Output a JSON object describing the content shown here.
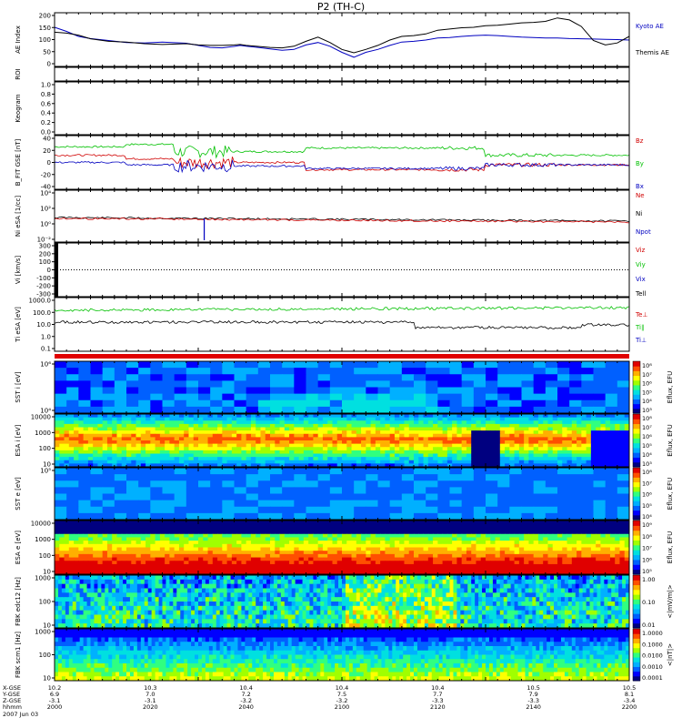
{
  "chart_data": {
    "type": "line",
    "title": "P2 (TH-C)",
    "time_labels": [
      "2000",
      "2020",
      "2040",
      "2100",
      "2120",
      "2140",
      "2200"
    ],
    "x_ticks": [
      {
        "time": "2000",
        "x_gse": "10.2",
        "y_gse": "6.9",
        "z_gse": "-3.1"
      },
      {
        "time": "2020",
        "x_gse": "10.3",
        "y_gse": "7.0",
        "z_gse": "-3.1"
      },
      {
        "time": "2040",
        "x_gse": "10.4",
        "y_gse": "7.2",
        "z_gse": "-3.2"
      },
      {
        "time": "2100",
        "x_gse": "10.4",
        "y_gse": "7.5",
        "z_gse": "-3.2"
      },
      {
        "time": "2120",
        "x_gse": "10.4",
        "y_gse": "7.7",
        "z_gse": "-3.3"
      },
      {
        "time": "2140",
        "x_gse": "10.5",
        "y_gse": "7.9",
        "z_gse": "-3.3"
      },
      {
        "time": "2200",
        "x_gse": "10.5",
        "y_gse": "8.1",
        "z_gse": "-3.4"
      }
    ],
    "footer": {
      "x_label": "X-GSE",
      "y_label": "Y-GSE",
      "z_label": "Z-GSE",
      "time_label": "hhmm",
      "date": "2007 Jun 03"
    },
    "panels": {
      "ae": {
        "ylabel": "AE Index",
        "ylim": [
          0,
          200
        ],
        "ticks": [
          "200",
          "150",
          "100",
          "50",
          "0"
        ],
        "series": [
          {
            "name": "Kyoto AE",
            "color": "#0000c0",
            "t": [
              0,
              10,
              20,
              30,
              45,
              60,
              75,
              90,
              110,
              120,
              130,
              140,
              150,
              155,
              160,
              170,
              180,
              190,
              200,
              210,
              220,
              230,
              240,
              250,
              260,
              270,
              280,
              290,
              300,
              310,
              320,
              330,
              340,
              350,
              360,
              370,
              380,
              390,
              400,
              410,
              420,
              430,
              440,
              450,
              460,
              470,
              480
            ],
            "y": [
              152,
              135,
              115,
              106,
              98,
              90,
              88,
              92,
              87,
              78,
              70,
              68,
              74,
              78,
              75,
              70,
              64,
              58,
              62,
              80,
              90,
              75,
              50,
              30,
              50,
              62,
              78,
              92,
              95,
              100,
              108,
              110,
              115,
              118,
              120,
              118,
              115,
              112,
              110,
              108,
              108,
              106,
              105,
              104,
              103,
              102,
              100
            ]
          },
          {
            "name": "Themis AE",
            "color": "#000000",
            "t": [
              0,
              10,
              20,
              30,
              45,
              60,
              75,
              90,
              110,
              120,
              130,
              140,
              150,
              155,
              160,
              170,
              180,
              190,
              200,
              210,
              220,
              230,
              240,
              250,
              260,
              270,
              280,
              290,
              300,
              310,
              320,
              330,
              340,
              350,
              360,
              370,
              380,
              390,
              400,
              410,
              420,
              430,
              440,
              450,
              460,
              470,
              480
            ],
            "y": [
              132,
              128,
              120,
              105,
              95,
              92,
              85,
              82,
              85,
              80,
              78,
              78,
              80,
              82,
              78,
              74,
              70,
              68,
              75,
              95,
              112,
              90,
              62,
              48,
              62,
              78,
              100,
              115,
              118,
              125,
              140,
              145,
              150,
              152,
              158,
              160,
              165,
              170,
              172,
              176,
              190,
              182,
              155,
              98,
              80,
              88,
              115
            ]
          }
        ]
      },
      "roi": {
        "ylabel": "ROI"
      },
      "keogram": {
        "ylabel": "Keogram",
        "ticks": [
          "1.0",
          "0.8",
          "0.6",
          "0.4",
          "0.2",
          "0.0"
        ]
      },
      "bfield": {
        "ylabel": "B_FIT GSE [nT]",
        "ylim": [
          -40,
          40
        ],
        "ticks": [
          "40",
          "20",
          "0",
          "-20",
          "-40"
        ],
        "series": [
          {
            "name": "Bz",
            "color": "#d00000"
          },
          {
            "name": "By",
            "color": "#00c000"
          },
          {
            "name": "Bx",
            "color": "#0000c0"
          }
        ]
      },
      "density": {
        "ylabel": "Ni eSA [1/cc]",
        "ticks": [
          "10⁴",
          "10²",
          "10⁰",
          "10⁻²"
        ],
        "series": [
          {
            "name": "Ne",
            "color": "#d00000"
          },
          {
            "name": "Ni",
            "color": "#000000"
          },
          {
            "name": "Npot",
            "color": "#0000c0"
          }
        ]
      },
      "velocity": {
        "ylabel": "Vi [km/s]",
        "ylim": [
          -300,
          300
        ],
        "ticks": [
          "300",
          "200",
          "100",
          "0",
          "-100",
          "-200",
          "-300"
        ],
        "series": [
          {
            "name": "Viz",
            "color": "#d00000"
          },
          {
            "name": "Viy",
            "color": "#00c000"
          },
          {
            "name": "Vix",
            "color": "#0000c0"
          },
          {
            "name": "Tell",
            "color": "#000000"
          }
        ]
      },
      "temperature": {
        "ylabel": "Ti eSA [eV]",
        "ticks": [
          "1000.0",
          "100.0",
          "10.0",
          "1.0",
          "0.1"
        ],
        "series": [
          {
            "name": "Te⊥",
            "color": "#d00000"
          },
          {
            "name": "Ti∥",
            "color": "#00c000"
          },
          {
            "name": "Ti⊥",
            "color": "#0000c0"
          }
        ]
      },
      "sst_i": {
        "ylabel": "SST i [eV]",
        "ticks": [
          "10⁶",
          "10⁴"
        ]
      },
      "esa_i": {
        "ylabel": "ESA i [eV]",
        "ticks": [
          "10000",
          "1000",
          "100",
          "10"
        ]
      },
      "sst_e": {
        "ylabel": "SST e [eV]",
        "ticks": [
          "10⁵"
        ]
      },
      "esa_e": {
        "ylabel": "ESA e [eV]",
        "ticks": [
          "10000",
          "1000",
          "100",
          "10"
        ]
      },
      "fbk_e": {
        "ylabel": "FBK edc12 [Hz]",
        "ticks": [
          "1000",
          "100",
          "10"
        ]
      },
      "fbk_b": {
        "ylabel": "FBK scm1 [Hz]",
        "ticks": [
          "1000",
          "100",
          "10"
        ]
      }
    },
    "colorbars": [
      {
        "label": "Eflux, EFU",
        "ticks": [
          "10⁸",
          "10⁷",
          "10⁶",
          "10⁵",
          "10⁴",
          "10³"
        ]
      },
      {
        "label": "Eflux, EFU",
        "ticks": [
          "10⁸",
          "10⁷",
          "10⁶",
          "10⁵",
          "10⁴",
          "10³"
        ]
      },
      {
        "label": "Eflux, EFU",
        "ticks": [
          "10⁸",
          "10⁷",
          "10⁶",
          "10⁵",
          "10⁴"
        ]
      },
      {
        "label": "Eflux, EFU",
        "ticks": [
          "10⁹",
          "10⁸",
          "10⁷",
          "10⁶",
          "10⁵"
        ]
      },
      {
        "label": "<|mV/m|>",
        "ticks": [
          "1.00",
          "0.10",
          "0.01"
        ]
      },
      {
        "label": "<|nT|>",
        "ticks": [
          "1.0000",
          "0.1000",
          "0.0100",
          "0.0010",
          "0.0001"
        ]
      }
    ]
  }
}
